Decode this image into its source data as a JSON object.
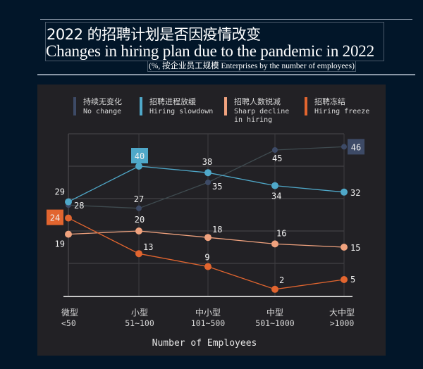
{
  "header": {
    "title_cn": "2022 的招聘计划是否因疫情改变",
    "title_en": "Changes in hiring plan due to the pandemic in 2022",
    "subtitle": "(%, 按企业员工规模  Enterprises by the number of employees)"
  },
  "chart_data": {
    "type": "line",
    "title": "Changes in hiring plan due to the pandemic in 2022",
    "xlabel": "Number of Employees",
    "ylabel": "",
    "ylim": [
      0,
      50
    ],
    "grid": true,
    "legend_position": "top",
    "categories": [
      {
        "cn": "微型",
        "en": "<50"
      },
      {
        "cn": "小型",
        "en": "51~100"
      },
      {
        "cn": "中小型",
        "en": "101~500"
      },
      {
        "cn": "中型",
        "en": "501~1000"
      },
      {
        "cn": "大中型",
        "en": ">1000"
      }
    ],
    "series": [
      {
        "name_cn": "持续无变化",
        "name_en": "No change",
        "color": "#3d4a66",
        "values": [
          28,
          27,
          35,
          45,
          46
        ],
        "highlight_index": 4
      },
      {
        "name_cn": "招聘进程放缓",
        "name_en": "Hiring slowdown",
        "color": "#4fa8c9",
        "values": [
          29,
          40,
          38,
          34,
          32
        ],
        "highlight_index": 1
      },
      {
        "name_cn": "招聘人数锐减",
        "name_en": "Sharp decline",
        "name_en2": "in hiring",
        "color": "#f0a27e",
        "values": [
          19,
          20,
          18,
          16,
          15
        ],
        "highlight_index": -1
      },
      {
        "name_cn": "招聘冻结",
        "name_en": "Hiring freeze",
        "color": "#e2652f",
        "values": [
          24,
          13,
          9,
          2,
          5
        ],
        "highlight_index": 0
      }
    ]
  }
}
